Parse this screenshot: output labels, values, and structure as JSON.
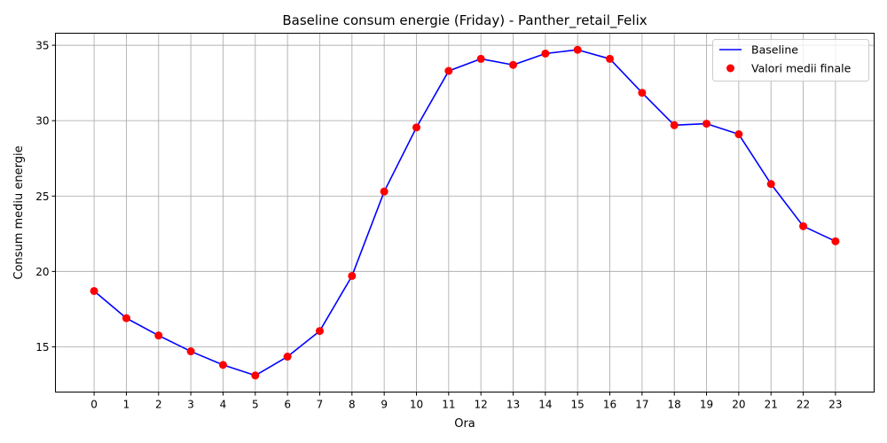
{
  "chart_data": {
    "type": "line",
    "title": "Baseline consum energie (Friday) - Panther_retail_Felix",
    "xlabel": "Ora",
    "ylabel": "Consum mediu energie",
    "x": [
      0,
      1,
      2,
      3,
      4,
      5,
      6,
      7,
      8,
      9,
      10,
      11,
      12,
      13,
      14,
      15,
      16,
      17,
      18,
      19,
      20,
      21,
      22,
      23
    ],
    "x_tick_labels": [
      "0",
      "1",
      "2",
      "3",
      "4",
      "5",
      "6",
      "7",
      "8",
      "9",
      "10",
      "11",
      "12",
      "13",
      "14",
      "15",
      "16",
      "17",
      "18",
      "19",
      "20",
      "21",
      "22",
      "23"
    ],
    "y_ticks": [
      15,
      20,
      25,
      30,
      35
    ],
    "y_tick_labels": [
      "15",
      "20",
      "25",
      "30",
      "35"
    ],
    "xlim": [
      -1.2,
      24.2
    ],
    "ylim": [
      12.0,
      35.8
    ],
    "grid": true,
    "legend_position": "top-right",
    "series": [
      {
        "name": "Baseline",
        "kind": "line",
        "color": "#0000ff",
        "values": [
          18.7,
          16.9,
          15.75,
          14.7,
          13.8,
          13.1,
          14.35,
          16.05,
          19.7,
          25.3,
          29.55,
          33.3,
          34.1,
          33.7,
          34.45,
          34.7,
          34.1,
          31.85,
          29.7,
          29.8,
          29.1,
          25.8,
          23.0,
          22.0
        ]
      },
      {
        "name": "Valori medii finale",
        "kind": "scatter",
        "color": "#ff0000",
        "values": [
          18.7,
          16.9,
          15.75,
          14.7,
          13.8,
          13.1,
          14.35,
          16.05,
          19.7,
          25.3,
          29.55,
          33.3,
          34.1,
          33.7,
          34.45,
          34.7,
          34.1,
          31.85,
          29.7,
          29.8,
          29.1,
          25.8,
          23.0,
          22.0
        ]
      }
    ]
  }
}
